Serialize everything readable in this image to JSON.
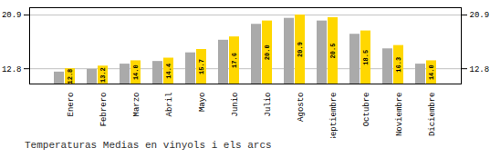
{
  "chart_data": {
    "type": "bar",
    "title": "Temperaturas Medias en vinyols i els arcs",
    "categories": [
      "Enero",
      "Febrero",
      "Marzo",
      "Abril",
      "Mayo",
      "Junio",
      "Julio",
      "Agosto",
      "Septiembre",
      "Octubre",
      "Noviembre",
      "Diciembre"
    ],
    "series": [
      {
        "color": "#AAAAAA",
        "values": [
          12.3,
          12.7,
          13.5,
          13.9,
          15.2,
          17.1,
          19.5,
          20.4,
          20.0,
          18.0,
          15.8,
          13.5
        ]
      },
      {
        "color": "#FFD700",
        "values": [
          12.8,
          13.2,
          14.0,
          14.4,
          15.7,
          17.6,
          20.0,
          20.9,
          20.5,
          18.5,
          16.3,
          14.0
        ],
        "value_labels": [
          "12.8",
          "13.2",
          "14.0",
          "14.4",
          "15.7",
          "17.6",
          "20.0",
          "20.9",
          "20.5",
          "18.5",
          "16.3",
          "14.0"
        ],
        "data_labels": true
      }
    ],
    "ylim": [
      10.5,
      22.0
    ],
    "yticks": [
      12.8,
      20.9
    ],
    "grid": true
  }
}
